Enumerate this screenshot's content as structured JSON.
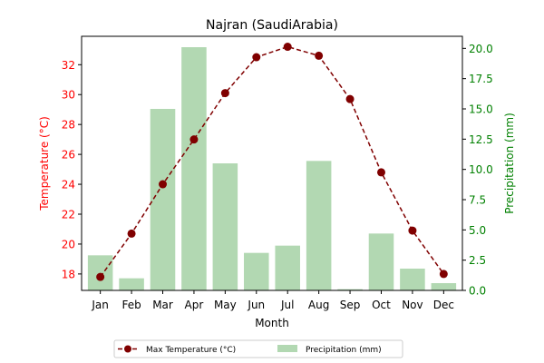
{
  "chart_data": {
    "type": "bar",
    "title": "Najran (SaudiArabia)",
    "xlabel": "Month",
    "ylabel": "Temperature (°C)",
    "y2label": "Precipitation (mm)",
    "categories": [
      "Jan",
      "Feb",
      "Mar",
      "Apr",
      "May",
      "Jun",
      "Jul",
      "Aug",
      "Sep",
      "Oct",
      "Nov",
      "Dec"
    ],
    "ylim": [
      16.9,
      33.9
    ],
    "y2lim": [
      0,
      21
    ],
    "yticks": [
      18,
      20,
      22,
      24,
      26,
      28,
      30,
      32
    ],
    "y2ticks": [
      0.0,
      2.5,
      5.0,
      7.5,
      10.0,
      12.5,
      15.0,
      17.5,
      20.0
    ],
    "y2tick_labels": [
      "0.0",
      "2.5",
      "5.0",
      "7.5",
      "10.0",
      "12.5",
      "15.0",
      "17.5",
      "20.0"
    ],
    "series": [
      {
        "name": "Max Temperature (°C)",
        "type": "line",
        "axis": "left",
        "color": "#800000",
        "style": "dashed",
        "marker": "circle",
        "values": [
          17.8,
          20.7,
          24.0,
          27.0,
          30.1,
          32.5,
          33.2,
          32.6,
          29.7,
          24.8,
          20.9,
          18.0
        ]
      },
      {
        "name": "Precipitation (mm)",
        "type": "bar",
        "axis": "right",
        "color": "#b2d8b2",
        "values": [
          2.9,
          1.0,
          15.0,
          20.1,
          10.5,
          3.1,
          3.7,
          10.7,
          0.1,
          4.7,
          1.8,
          0.6
        ]
      }
    ],
    "left_axis_color": "#ff0000",
    "right_axis_color": "#008000",
    "legend": "bottom-center",
    "grid": false
  }
}
